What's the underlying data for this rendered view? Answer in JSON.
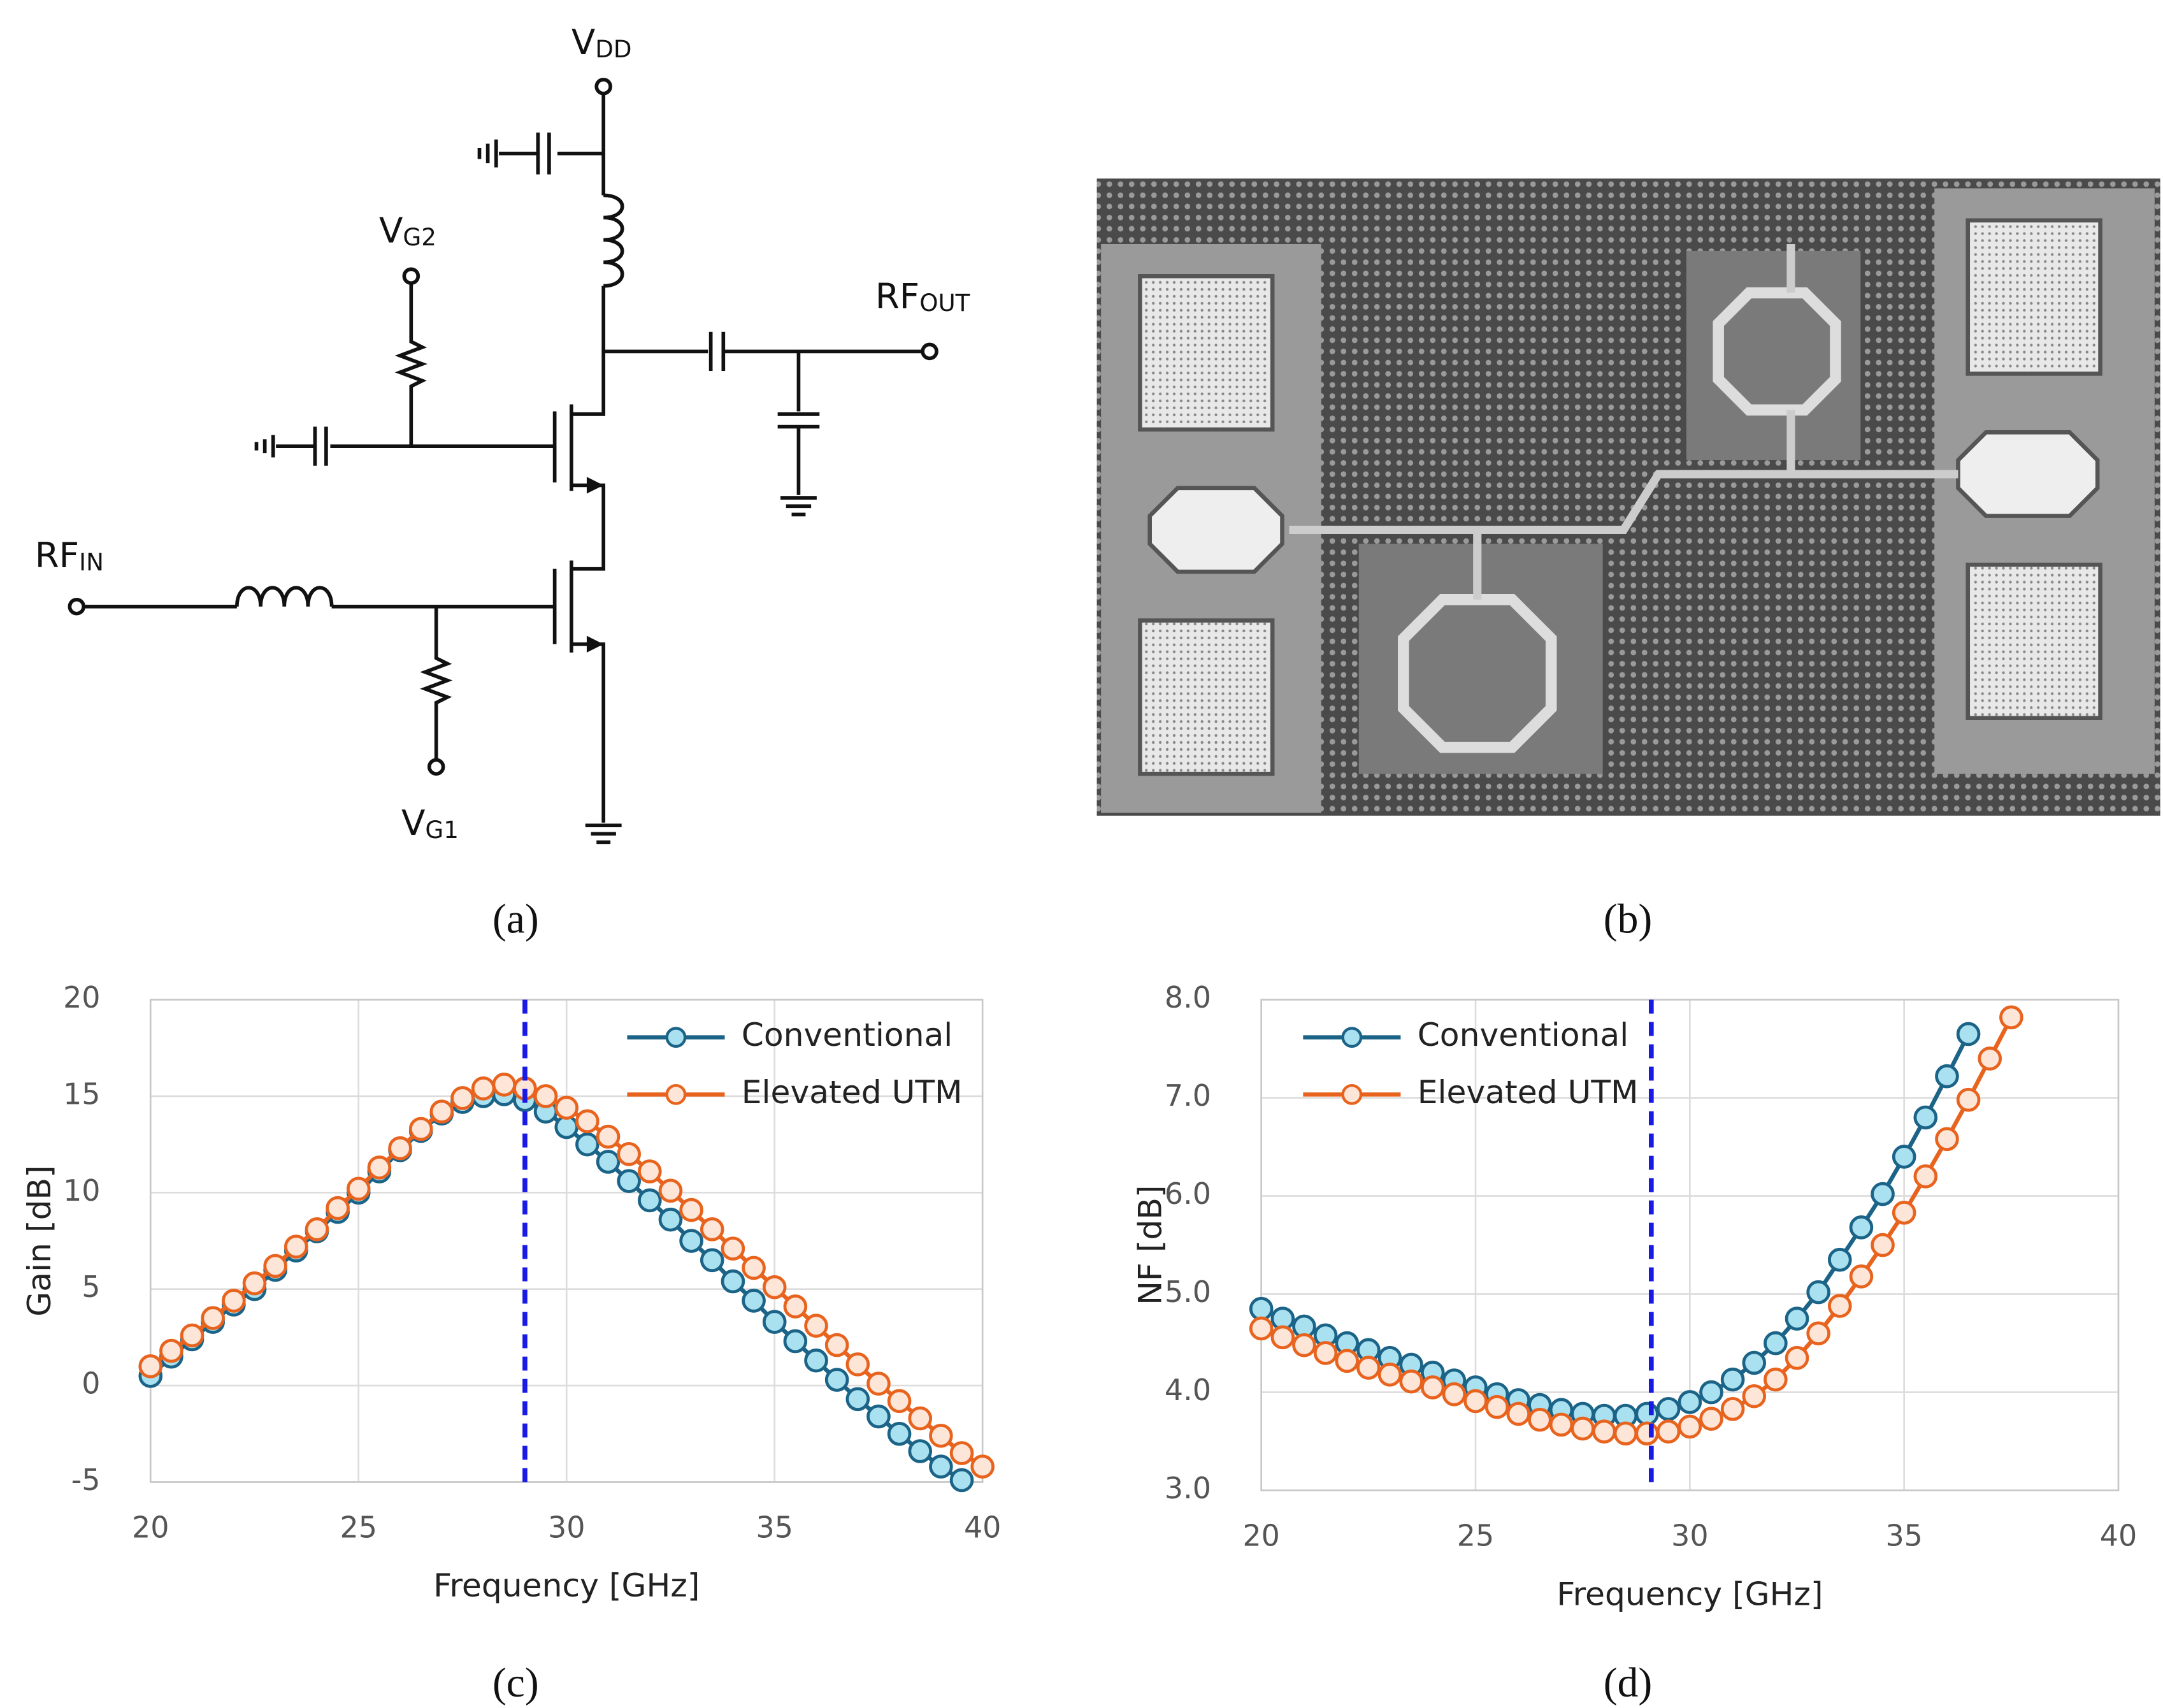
{
  "schematic": {
    "vdd": {
      "main": "V",
      "sub": "DD"
    },
    "vg2": {
      "main": "V",
      "sub": "G2"
    },
    "vg1": {
      "main": "V",
      "sub": "G1"
    },
    "rfin": {
      "main": "RF",
      "sub": "IN"
    },
    "rfout": {
      "main": "RF",
      "sub": "OUT"
    }
  },
  "panel_labels": [
    "(a)",
    "(b)",
    "(c)",
    "(d)"
  ],
  "chart_data": [
    {
      "type": "line",
      "ylabel": "Gain [dB]",
      "xlabel": "Frequency [GHz]",
      "xlim": [
        20,
        40
      ],
      "xticks": [
        20,
        25,
        30,
        35,
        40
      ],
      "ylim": [
        -5,
        20
      ],
      "yticks": [
        -5,
        0,
        5,
        10,
        15,
        20
      ],
      "grid": true,
      "legend": "upper right",
      "reference_x": 29,
      "reference_color": "#1a1ae6",
      "series": [
        {
          "name": "Conventional",
          "color": "#1b6488",
          "marker_fill": "#a9e1f0",
          "x": [
            20,
            20.5,
            21,
            21.5,
            22,
            22.5,
            23,
            23.5,
            24,
            24.5,
            25,
            25.5,
            26,
            26.5,
            27,
            27.5,
            28,
            28.5,
            29,
            29.5,
            30,
            30.5,
            31,
            31.5,
            32,
            32.5,
            33,
            33.5,
            34,
            34.5,
            35,
            35.5,
            36,
            36.5,
            37,
            37.5,
            38,
            38.5,
            39,
            39.5
          ],
          "values": [
            0.5,
            1.5,
            2.4,
            3.3,
            4.2,
            5.0,
            6.0,
            7.0,
            8.0,
            9.0,
            10.0,
            11.1,
            12.2,
            13.2,
            14.1,
            14.7,
            15.0,
            15.1,
            14.8,
            14.2,
            13.4,
            12.5,
            11.6,
            10.6,
            9.6,
            8.6,
            7.5,
            6.5,
            5.4,
            4.4,
            3.3,
            2.3,
            1.3,
            0.3,
            -0.7,
            -1.6,
            -2.5,
            -3.4,
            -4.2,
            -4.9
          ]
        },
        {
          "name": "Elevated UTM",
          "color": "#e8641e",
          "marker_fill": "#fde5d8",
          "x": [
            20,
            20.5,
            21,
            21.5,
            22,
            22.5,
            23,
            23.5,
            24,
            24.5,
            25,
            25.5,
            26,
            26.5,
            27,
            27.5,
            28,
            28.5,
            29,
            29.5,
            30,
            30.5,
            31,
            31.5,
            32,
            32.5,
            33,
            33.5,
            34,
            34.5,
            35,
            35.5,
            36,
            36.5,
            37,
            37.5,
            38,
            38.5,
            39,
            39.5,
            40
          ],
          "values": [
            1.0,
            1.8,
            2.6,
            3.5,
            4.4,
            5.3,
            6.2,
            7.2,
            8.1,
            9.2,
            10.2,
            11.3,
            12.3,
            13.3,
            14.2,
            14.9,
            15.4,
            15.6,
            15.4,
            15.0,
            14.4,
            13.7,
            12.9,
            12.0,
            11.1,
            10.1,
            9.1,
            8.1,
            7.1,
            6.1,
            5.1,
            4.1,
            3.1,
            2.1,
            1.1,
            0.1,
            -0.8,
            -1.7,
            -2.6,
            -3.5,
            -4.2
          ]
        }
      ]
    },
    {
      "type": "line",
      "ylabel": "NF [dB]",
      "xlabel": "Frequency [GHz]",
      "xlim": [
        20,
        40
      ],
      "xticks": [
        20,
        25,
        30,
        35,
        40
      ],
      "ylim": [
        3,
        8
      ],
      "yticks": [
        {
          "value": 3,
          "label": "3.0"
        },
        {
          "value": 4,
          "label": "4.0"
        },
        {
          "value": 5,
          "label": "5.0"
        },
        {
          "value": 6,
          "label": "6.0"
        },
        {
          "value": 7,
          "label": "7.0"
        },
        {
          "value": 8,
          "label": "8.0"
        }
      ],
      "grid": true,
      "legend": "upper left",
      "reference_x": 29.1,
      "reference_color": "#1a1ae6",
      "series": [
        {
          "name": "Conventional",
          "color": "#1b6488",
          "marker_fill": "#a9e1f0",
          "x": [
            20,
            20.5,
            21,
            21.5,
            22,
            22.5,
            23,
            23.5,
            24,
            24.5,
            25,
            25.5,
            26,
            26.5,
            27,
            27.5,
            28,
            28.5,
            29,
            29.5,
            30,
            30.5,
            31,
            31.5,
            32,
            32.5,
            33,
            33.5,
            34,
            34.5,
            35,
            35.5,
            36,
            36.5
          ],
          "values": [
            4.85,
            4.75,
            4.67,
            4.58,
            4.5,
            4.43,
            4.35,
            4.28,
            4.2,
            4.12,
            4.05,
            3.98,
            3.92,
            3.87,
            3.82,
            3.78,
            3.76,
            3.76,
            3.78,
            3.83,
            3.9,
            4.0,
            4.13,
            4.3,
            4.5,
            4.75,
            5.02,
            5.35,
            5.68,
            6.02,
            6.4,
            6.8,
            7.22,
            7.65
          ]
        },
        {
          "name": "Elevated UTM",
          "color": "#e8641e",
          "marker_fill": "#fde5d8",
          "x": [
            20,
            20.5,
            21,
            21.5,
            22,
            22.5,
            23,
            23.5,
            24,
            24.5,
            25,
            25.5,
            26,
            26.5,
            27,
            27.5,
            28,
            28.5,
            29,
            29.5,
            30,
            30.5,
            31,
            31.5,
            32,
            32.5,
            33,
            33.5,
            34,
            34.5,
            35,
            35.5,
            36,
            36.5,
            37,
            37.5
          ],
          "values": [
            4.65,
            4.56,
            4.48,
            4.4,
            4.32,
            4.25,
            4.18,
            4.11,
            4.05,
            3.98,
            3.91,
            3.85,
            3.78,
            3.72,
            3.67,
            3.63,
            3.6,
            3.58,
            3.58,
            3.6,
            3.65,
            3.73,
            3.83,
            3.96,
            4.13,
            4.35,
            4.6,
            4.88,
            5.18,
            5.5,
            5.83,
            6.2,
            6.58,
            6.98,
            7.4,
            7.82
          ]
        }
      ]
    }
  ]
}
